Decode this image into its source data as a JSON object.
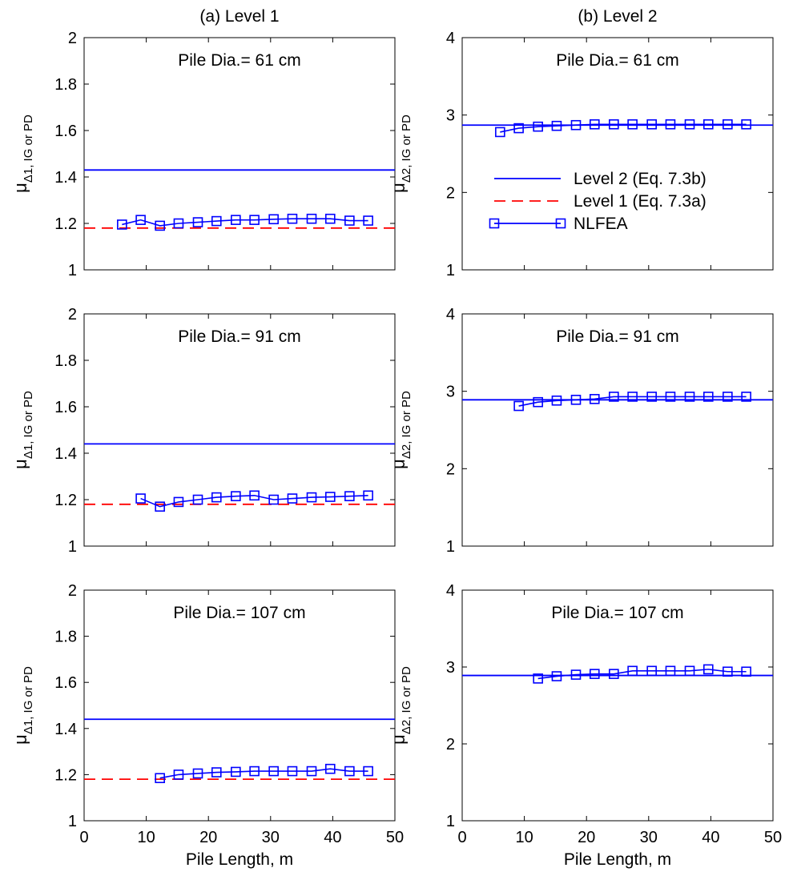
{
  "colors": {
    "level2": "#0000ff",
    "level1": "#ff0000",
    "nlfea": "#0000ff"
  },
  "columns": [
    {
      "title": "(a) Level 1",
      "ylabel_main": "μ",
      "ylabel_sub": "Δ1, IG or PD"
    },
    {
      "title": "(b) Level 2",
      "ylabel_main": "μ",
      "ylabel_sub": "Δ2, IG or PD"
    }
  ],
  "xlabel": "Pile Length, m",
  "legend": {
    "placement": "center (top-right panel)",
    "entries": [
      {
        "key": "level2",
        "label": "Level 2 (Eq. 7.3b)"
      },
      {
        "key": "level1",
        "label": "Level 1 (Eq. 7.3a)"
      },
      {
        "key": "nlfea",
        "label": "NLFEA"
      }
    ]
  },
  "chart_data": [
    {
      "type": "line",
      "title": "Pile Dia.= 61 cm",
      "xlim": [
        0,
        50
      ],
      "ylim": [
        1,
        2
      ],
      "xticks": [
        "0",
        "10",
        "20",
        "30",
        "40",
        "50"
      ],
      "yticks": [
        "1",
        "1.2",
        "1.4",
        "1.6",
        "1.8",
        "2"
      ],
      "series": [
        {
          "key": "level2",
          "name": "Level 2 (Eq. 7.3b)",
          "constant": 1.43
        },
        {
          "key": "level1",
          "name": "Level 1 (Eq. 7.3a)",
          "constant": 1.18
        },
        {
          "key": "nlfea",
          "name": "NLFEA",
          "x": [
            6.1,
            9.1,
            12.2,
            15.2,
            18.3,
            21.3,
            24.4,
            27.4,
            30.5,
            33.5,
            36.6,
            39.6,
            42.7,
            45.7
          ],
          "y": [
            1.195,
            1.215,
            1.19,
            1.2,
            1.205,
            1.21,
            1.215,
            1.215,
            1.218,
            1.22,
            1.22,
            1.22,
            1.212,
            1.212
          ]
        }
      ]
    },
    {
      "type": "line",
      "title": "Pile Dia.= 61 cm",
      "xlim": [
        0,
        50
      ],
      "ylim": [
        1,
        4
      ],
      "xticks": [
        "0",
        "10",
        "20",
        "30",
        "40",
        "50"
      ],
      "yticks": [
        "1",
        "2",
        "3",
        "4"
      ],
      "series": [
        {
          "key": "level2",
          "name": "Level 2 (Eq. 7.3b)",
          "constant": 2.87
        },
        {
          "key": "nlfea",
          "name": "NLFEA",
          "x": [
            6.1,
            9.1,
            12.2,
            15.2,
            18.3,
            21.3,
            24.4,
            27.4,
            30.5,
            33.5,
            36.6,
            39.6,
            42.7,
            45.7
          ],
          "y": [
            2.78,
            2.83,
            2.85,
            2.86,
            2.87,
            2.88,
            2.88,
            2.88,
            2.88,
            2.88,
            2.88,
            2.88,
            2.88,
            2.88
          ]
        }
      ]
    },
    {
      "type": "line",
      "title": "Pile Dia.= 91 cm",
      "xlim": [
        0,
        50
      ],
      "ylim": [
        1,
        2
      ],
      "xticks": [
        "0",
        "10",
        "20",
        "30",
        "40",
        "50"
      ],
      "yticks": [
        "1",
        "1.2",
        "1.4",
        "1.6",
        "1.8",
        "2"
      ],
      "series": [
        {
          "key": "level2",
          "name": "Level 2 (Eq. 7.3b)",
          "constant": 1.44
        },
        {
          "key": "level1",
          "name": "Level 1 (Eq. 7.3a)",
          "constant": 1.18
        },
        {
          "key": "nlfea",
          "name": "NLFEA",
          "x": [
            9.1,
            12.2,
            15.2,
            18.3,
            21.3,
            24.4,
            27.4,
            30.5,
            33.5,
            36.6,
            39.6,
            42.7,
            45.7
          ],
          "y": [
            1.205,
            1.17,
            1.19,
            1.2,
            1.21,
            1.215,
            1.218,
            1.2,
            1.205,
            1.21,
            1.212,
            1.215,
            1.218
          ]
        }
      ]
    },
    {
      "type": "line",
      "title": "Pile Dia.= 91 cm",
      "xlim": [
        0,
        50
      ],
      "ylim": [
        1,
        4
      ],
      "xticks": [
        "0",
        "10",
        "20",
        "30",
        "40",
        "50"
      ],
      "yticks": [
        "1",
        "2",
        "3",
        "4"
      ],
      "series": [
        {
          "key": "level2",
          "name": "Level 2 (Eq. 7.3b)",
          "constant": 2.89
        },
        {
          "key": "nlfea",
          "name": "NLFEA",
          "x": [
            9.1,
            12.2,
            15.2,
            18.3,
            21.3,
            24.4,
            27.4,
            30.5,
            33.5,
            36.6,
            39.6,
            42.7,
            45.7
          ],
          "y": [
            2.81,
            2.86,
            2.88,
            2.89,
            2.9,
            2.93,
            2.93,
            2.93,
            2.93,
            2.93,
            2.93,
            2.93,
            2.93
          ]
        }
      ]
    },
    {
      "type": "line",
      "title": "Pile Dia.= 107 cm",
      "xlim": [
        0,
        50
      ],
      "ylim": [
        1,
        2
      ],
      "xticks": [
        "0",
        "10",
        "20",
        "30",
        "40",
        "50"
      ],
      "yticks": [
        "1",
        "1.2",
        "1.4",
        "1.6",
        "1.8",
        "2"
      ],
      "series": [
        {
          "key": "level2",
          "name": "Level 2 (Eq. 7.3b)",
          "constant": 1.44
        },
        {
          "key": "level1",
          "name": "Level 1 (Eq. 7.3a)",
          "constant": 1.18
        },
        {
          "key": "nlfea",
          "name": "NLFEA",
          "x": [
            12.2,
            15.2,
            18.3,
            21.3,
            24.4,
            27.4,
            30.5,
            33.5,
            36.6,
            39.6,
            42.7,
            45.7
          ],
          "y": [
            1.185,
            1.2,
            1.205,
            1.21,
            1.212,
            1.215,
            1.215,
            1.215,
            1.215,
            1.225,
            1.215,
            1.215
          ]
        }
      ]
    },
    {
      "type": "line",
      "title": "Pile Dia.= 107 cm",
      "xlim": [
        0,
        50
      ],
      "ylim": [
        1,
        4
      ],
      "xticks": [
        "0",
        "10",
        "20",
        "30",
        "40",
        "50"
      ],
      "yticks": [
        "1",
        "2",
        "3",
        "4"
      ],
      "series": [
        {
          "key": "level2",
          "name": "Level 2 (Eq. 7.3b)",
          "constant": 2.89
        },
        {
          "key": "nlfea",
          "name": "NLFEA",
          "x": [
            12.2,
            15.2,
            18.3,
            21.3,
            24.4,
            27.4,
            30.5,
            33.5,
            36.6,
            39.6,
            42.7,
            45.7
          ],
          "y": [
            2.85,
            2.88,
            2.9,
            2.91,
            2.91,
            2.95,
            2.95,
            2.95,
            2.95,
            2.97,
            2.94,
            2.94
          ]
        }
      ]
    }
  ]
}
